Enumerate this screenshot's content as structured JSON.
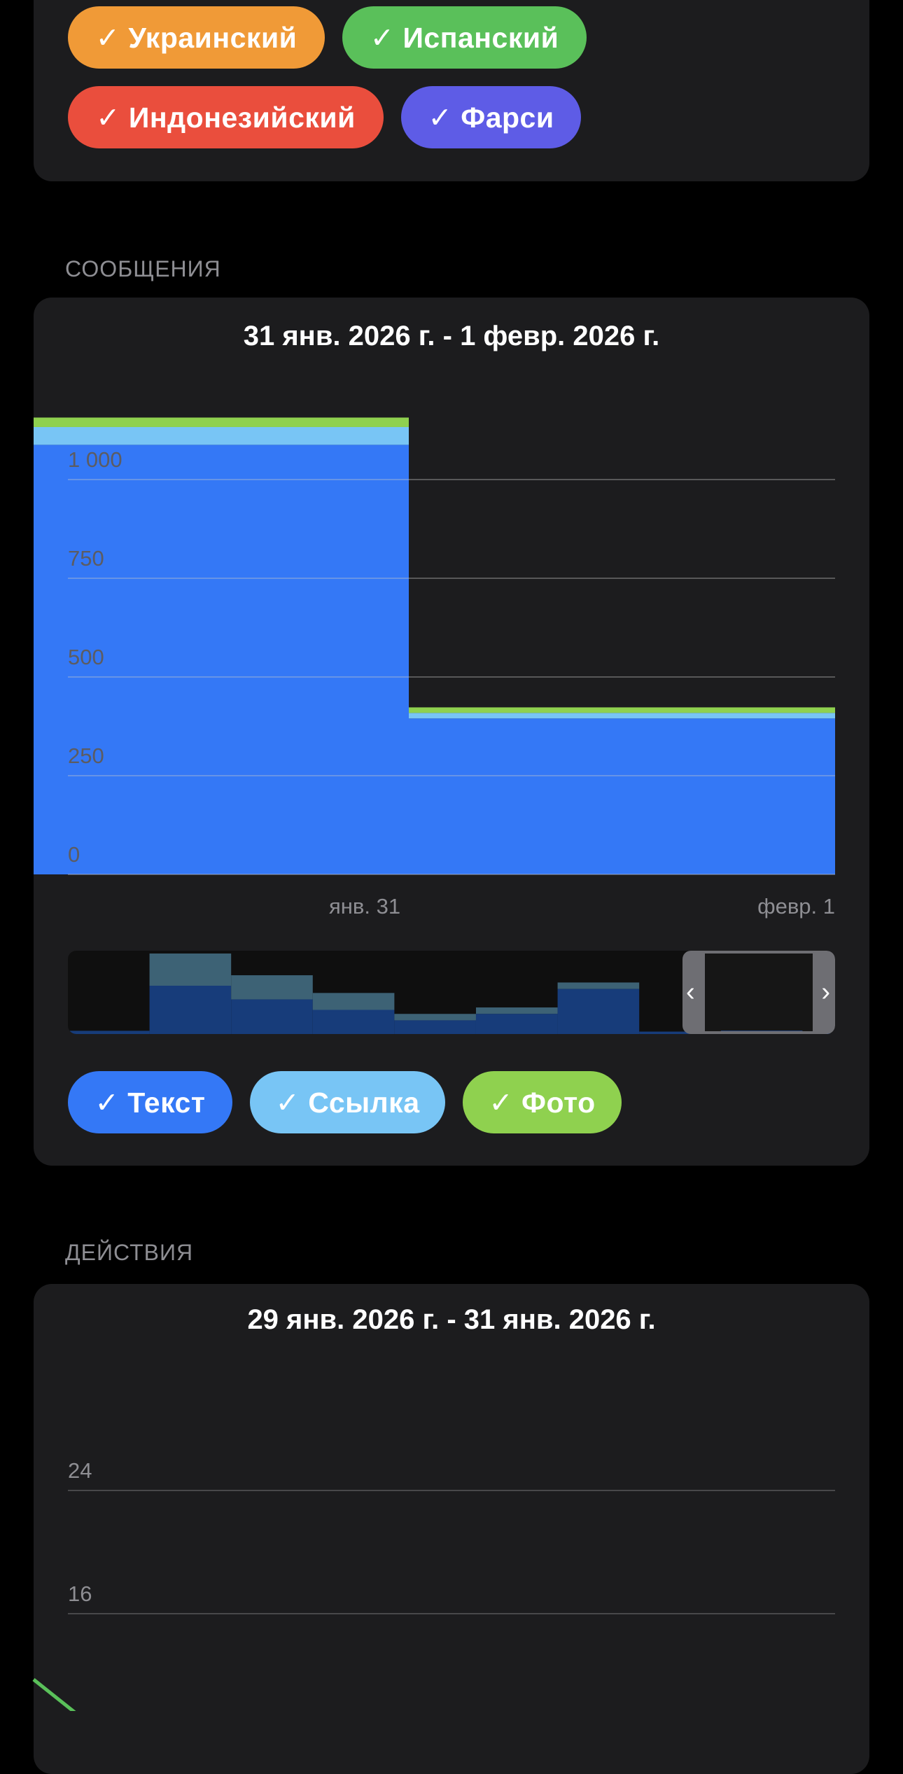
{
  "languages": {
    "chips": [
      {
        "label": "✓ Украинский",
        "color": "#f09a37"
      },
      {
        "label": "✓ Испанский",
        "color": "#5ac05a"
      },
      {
        "label": "✓ Индонезийский",
        "color": "#ea4e3d"
      },
      {
        "label": "✓ Фарси",
        "color": "#5e5ce6"
      }
    ]
  },
  "messages": {
    "section_label": "СООБЩЕНИЯ",
    "title": "31 янв. 2026 г. - 1 февр. 2026 г.",
    "legend": [
      {
        "label": "✓ Текст",
        "color": "#3478f6"
      },
      {
        "label": "✓ Ссылка",
        "color": "#78c5f5"
      },
      {
        "label": "✓ Фото",
        "color": "#8fd14f"
      }
    ]
  },
  "actions": {
    "section_label": "ДЕЙСТВИЯ",
    "title": "29 янв. 2026 г. - 31 янв. 2026 г.",
    "yticks": [
      "24",
      "16"
    ],
    "line_color": "#5ac05a"
  },
  "chart_data": [
    {
      "type": "bar",
      "stacked": true,
      "categories": [
        "янв. 31",
        "февр. 1"
      ],
      "series": [
        {
          "name": "Текст",
          "values": [
            1088,
            395
          ],
          "color": "#3478f6"
        },
        {
          "name": "Ссылка",
          "values": [
            45,
            14
          ],
          "color": "#78c5f5"
        },
        {
          "name": "Фото",
          "values": [
            24,
            14
          ],
          "color": "#8fd14f"
        }
      ],
      "yticks": [
        "0",
        "250",
        "500",
        "750",
        "1 000"
      ],
      "ylim": [
        0,
        1160
      ],
      "grid": true,
      "navigator": {
        "text": [
          0.04,
          0.6,
          0.43,
          0.3,
          0.17,
          0.25,
          0.56,
          0.03,
          0.04,
          0.01
        ],
        "link": [
          0,
          0.4,
          0.3,
          0.21,
          0.08,
          0.08,
          0.08,
          0,
          0,
          0
        ],
        "selected_range": [
          8,
          10
        ]
      }
    },
    {
      "type": "line",
      "yticks": [
        "16",
        "24"
      ],
      "grid": true
    }
  ]
}
